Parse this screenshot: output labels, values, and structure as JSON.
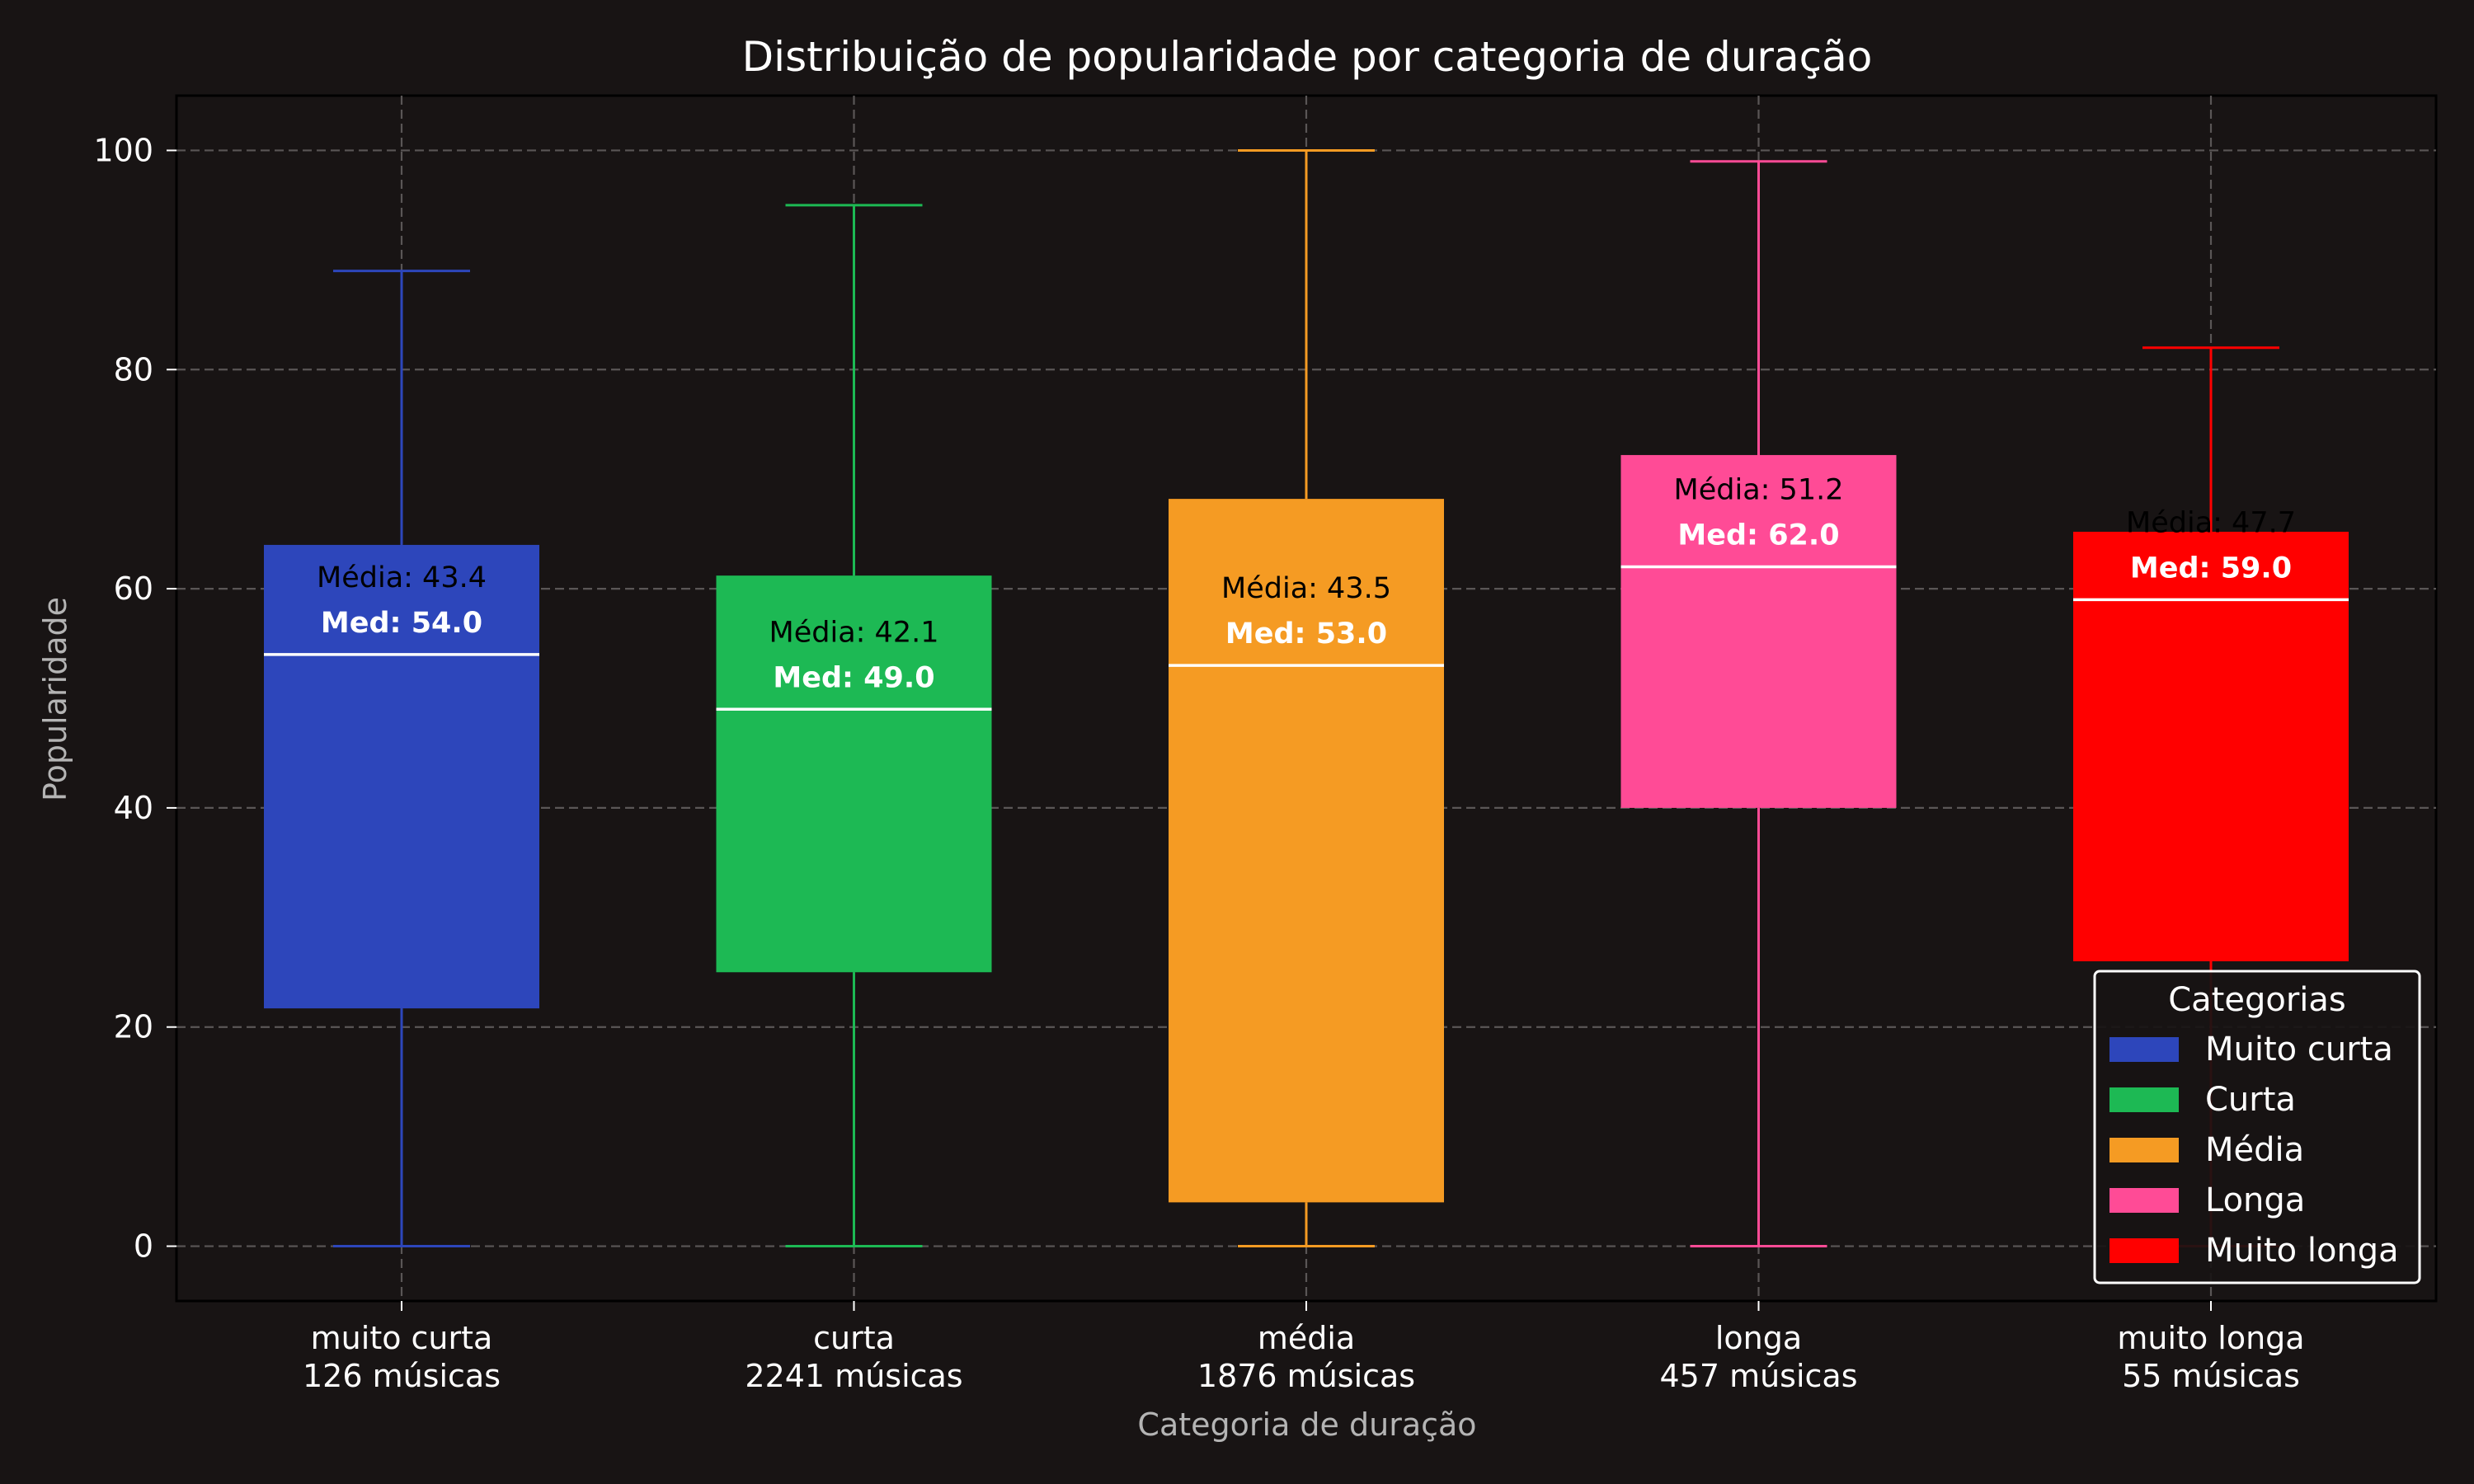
{
  "chart_data": {
    "type": "boxplot",
    "title": "Distribuição de popularidade por categoria de duração",
    "xlabel": "Categoria de duração",
    "ylabel": "Popularidade",
    "ylim": [
      -5,
      105
    ],
    "yticks": [
      0,
      20,
      40,
      60,
      80,
      100
    ],
    "grid": true,
    "categories": [
      {
        "label": "muito curta",
        "count_label": "126 músicas",
        "color": "#2d46bb",
        "whisker_low": 0,
        "q1": 21.7,
        "median": 54.0,
        "q3": 64.0,
        "whisker_high": 89,
        "mean_label": "Média: 43.4",
        "median_label": "Med: 54.0"
      },
      {
        "label": "curta",
        "count_label": "2241 músicas",
        "color": "#1db954",
        "whisker_low": 0,
        "q1": 25.0,
        "median": 49.0,
        "q3": 61.2,
        "whisker_high": 95,
        "mean_label": "Média: 42.1",
        "median_label": "Med: 49.0"
      },
      {
        "label": "média",
        "count_label": "1876 músicas",
        "color": "#f59b23",
        "whisker_low": 0,
        "q1": 4.0,
        "median": 53.0,
        "q3": 68.2,
        "whisker_high": 100,
        "mean_label": "Média: 43.5",
        "median_label": "Med: 53.0"
      },
      {
        "label": "longa",
        "count_label": "457 músicas",
        "color": "#ff4b96",
        "whisker_low": 0,
        "q1": 40.0,
        "median": 62.0,
        "q3": 72.2,
        "whisker_high": 99,
        "mean_label": "Média: 51.2",
        "median_label": "Med: 62.0"
      },
      {
        "label": "muito longa",
        "count_label": "55 músicas",
        "color": "#ff0000",
        "whisker_low": 0,
        "q1": 26.0,
        "median": 59.0,
        "q3": 65.2,
        "whisker_high": 82,
        "mean_label": "Média: 47.7",
        "median_label": "Med: 59.0"
      }
    ],
    "mean_values": [
      43.4,
      42.1,
      43.5,
      51.2,
      47.7
    ],
    "legend": {
      "title": "Categorias",
      "placement": "lower-right",
      "entries": [
        {
          "label": "Muito curta",
          "color": "#2d46bb"
        },
        {
          "label": "Curta",
          "color": "#1db954"
        },
        {
          "label": "Média",
          "color": "#f59b23"
        },
        {
          "label": "Longa",
          "color": "#ff4b96"
        },
        {
          "label": "Muito longa",
          "color": "#ff0000"
        }
      ]
    }
  }
}
